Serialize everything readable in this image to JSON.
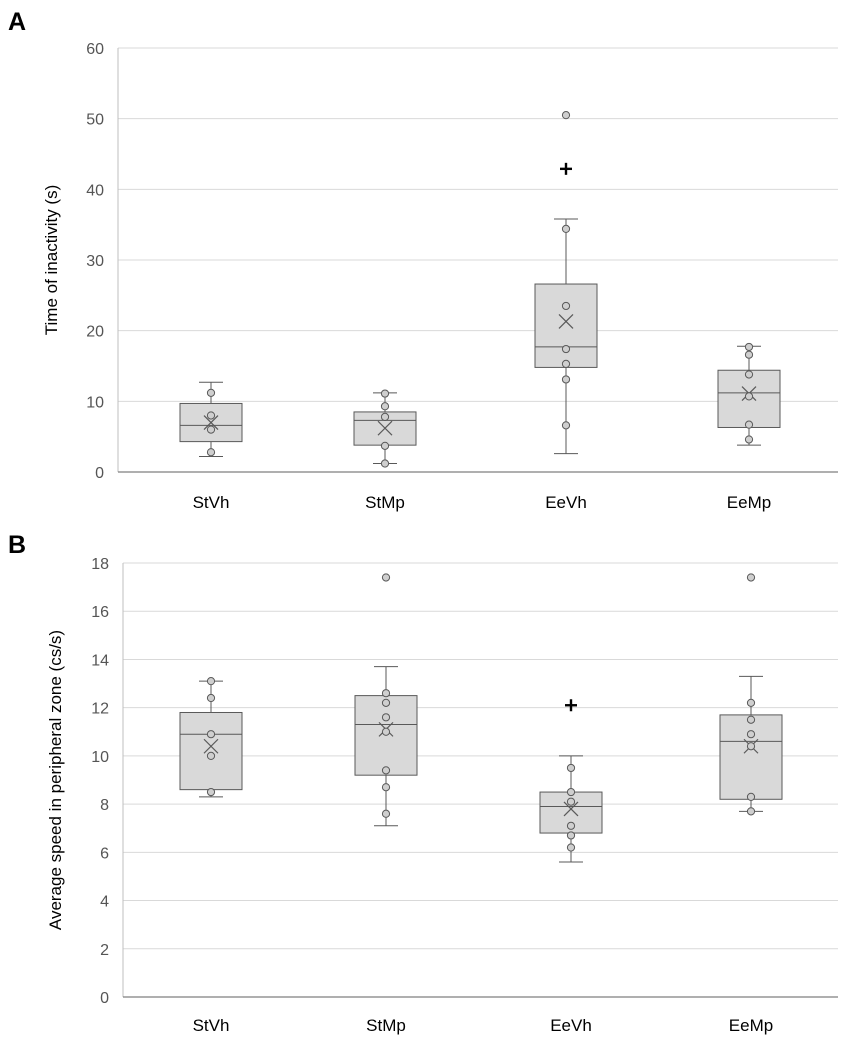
{
  "chart_data": [
    {
      "panel_label": "A",
      "type": "box",
      "ylabel": "Time of inactivity (s)",
      "xlabel": "",
      "ylim": [
        0,
        60
      ],
      "yticks": [
        0,
        10,
        20,
        30,
        40,
        50,
        60
      ],
      "grid": true,
      "categories": [
        "StVh",
        "StMp",
        "EeVh",
        "EeMp"
      ],
      "boxes": [
        {
          "whisker_low": 2.2,
          "q1": 4.3,
          "median": 6.6,
          "q3": 9.7,
          "whisker_high": 12.7,
          "mean": 7.0,
          "points": [
            2.8,
            6.0,
            8.0,
            11.2
          ],
          "outliers": []
        },
        {
          "whisker_low": 1.2,
          "q1": 3.8,
          "median": 7.3,
          "q3": 8.5,
          "whisker_high": 11.2,
          "mean": 6.2,
          "points": [
            1.2,
            3.7,
            7.8,
            9.3,
            11.1
          ],
          "outliers": []
        },
        {
          "whisker_low": 2.6,
          "q1": 14.8,
          "median": 17.7,
          "q3": 26.6,
          "whisker_high": 35.8,
          "mean": 21.3,
          "points": [
            6.6,
            13.1,
            15.3,
            17.4,
            23.5,
            34.4
          ],
          "outliers": [
            50.5,
            42.9
          ]
        },
        {
          "whisker_low": 3.8,
          "q1": 6.3,
          "median": 11.2,
          "q3": 14.4,
          "whisker_high": 17.8,
          "mean": 11.1,
          "points": [
            4.6,
            6.7,
            10.7,
            13.8,
            16.6,
            17.7
          ],
          "outliers": []
        }
      ]
    },
    {
      "panel_label": "B",
      "type": "box",
      "ylabel": "Average speed in peripheral zone (cs/s)",
      "xlabel": "",
      "ylim": [
        0,
        18
      ],
      "yticks": [
        0,
        2,
        4,
        6,
        8,
        10,
        12,
        14,
        16,
        18
      ],
      "grid": true,
      "categories": [
        "StVh",
        "StMp",
        "EeVh",
        "EeMp"
      ],
      "boxes": [
        {
          "whisker_low": 8.3,
          "q1": 8.6,
          "median": 10.9,
          "q3": 11.8,
          "whisker_high": 13.1,
          "mean": 10.4,
          "points": [
            8.5,
            10.0,
            10.9,
            12.4,
            13.1
          ],
          "outliers": []
        },
        {
          "whisker_low": 7.1,
          "q1": 9.2,
          "median": 11.3,
          "q3": 12.5,
          "whisker_high": 13.7,
          "mean": 11.1,
          "points": [
            7.6,
            8.7,
            9.4,
            11.0,
            11.6,
            12.2,
            12.6,
            17.4
          ],
          "outliers": []
        },
        {
          "whisker_low": 5.6,
          "q1": 6.8,
          "median": 7.9,
          "q3": 8.5,
          "whisker_high": 10.0,
          "mean": 7.8,
          "points": [
            6.2,
            6.7,
            7.1,
            8.1,
            8.5,
            9.5
          ],
          "outliers": [
            12.1
          ]
        },
        {
          "whisker_low": 7.7,
          "q1": 8.2,
          "median": 10.6,
          "q3": 11.7,
          "whisker_high": 13.3,
          "mean": 10.4,
          "points": [
            7.7,
            8.3,
            10.4,
            10.9,
            11.5,
            12.2,
            17.4
          ],
          "outliers": []
        }
      ]
    }
  ]
}
